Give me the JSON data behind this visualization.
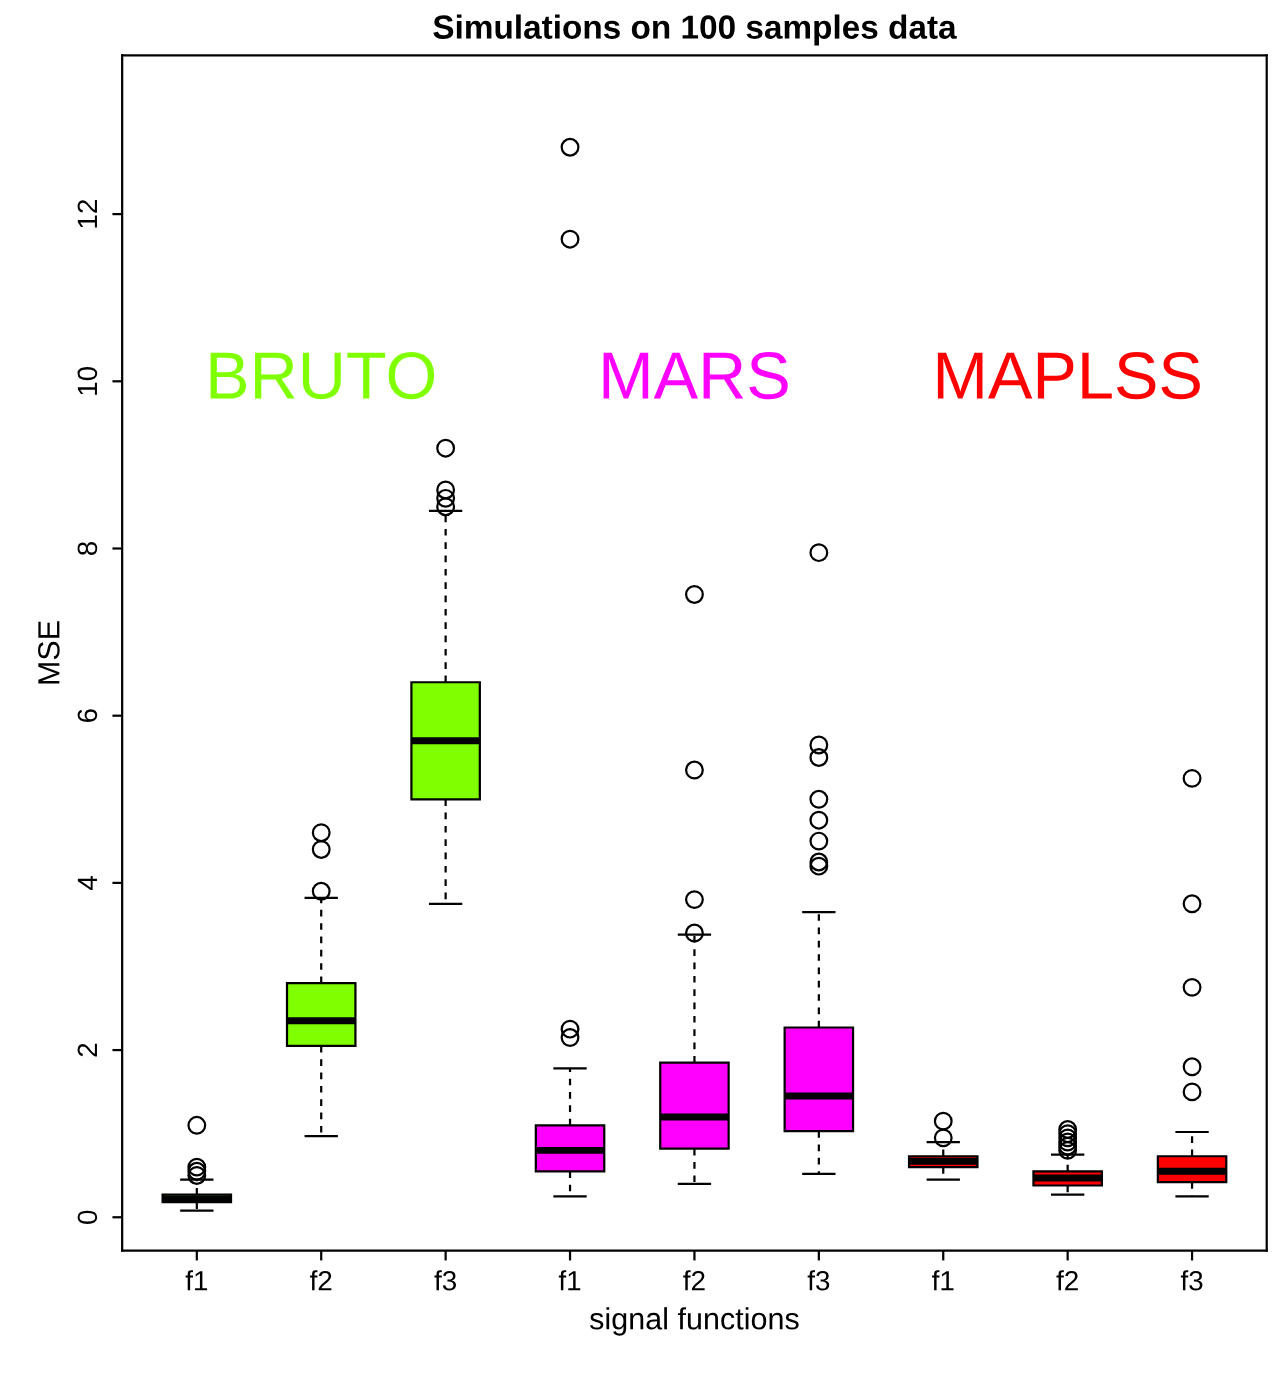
{
  "chart_data": {
    "type": "box",
    "title": "Simulations on 100 samples data",
    "xlabel": "signal functions",
    "ylabel": "MSE",
    "categories": [
      "f1",
      "f2",
      "f3",
      "f1",
      "f2",
      "f3",
      "f1",
      "f2",
      "f3"
    ],
    "series": [
      {
        "name": "BRUTO",
        "color": "#7fff00",
        "boxes": [
          {
            "low": 0.08,
            "q1": 0.18,
            "median": 0.22,
            "q3": 0.27,
            "high": 0.45,
            "outliers": [
              0.5,
              0.55,
              0.6,
              1.1
            ]
          },
          {
            "low": 0.97,
            "q1": 2.05,
            "median": 2.35,
            "q3": 2.8,
            "high": 3.82,
            "outliers": [
              3.9,
              4.4,
              4.6
            ]
          },
          {
            "low": 3.75,
            "q1": 5.0,
            "median": 5.7,
            "q3": 6.4,
            "high": 8.45,
            "outliers": [
              8.5,
              8.6,
              8.7,
              9.2
            ]
          },
          null,
          null,
          null,
          null,
          null,
          null
        ]
      },
      {
        "name": "MARS",
        "color": "#ff00ff",
        "boxes": [
          null,
          null,
          null,
          {
            "low": 0.25,
            "q1": 0.55,
            "median": 0.8,
            "q3": 1.1,
            "high": 1.78,
            "outliers": [
              2.15,
              2.25,
              11.7,
              12.8
            ]
          },
          {
            "low": 0.4,
            "q1": 0.82,
            "median": 1.2,
            "q3": 1.85,
            "high": 3.38,
            "outliers": [
              3.4,
              3.8,
              5.35,
              7.45
            ]
          },
          {
            "low": 0.52,
            "q1": 1.03,
            "median": 1.45,
            "q3": 2.27,
            "high": 3.65,
            "outliers": [
              4.2,
              4.25,
              4.5,
              4.75,
              5.0,
              5.5,
              5.65,
              7.95
            ]
          },
          null,
          null,
          null
        ]
      },
      {
        "name": "MAPLSS",
        "color": "#ff0000",
        "boxes": [
          null,
          null,
          null,
          null,
          null,
          null,
          {
            "low": 0.45,
            "q1": 0.6,
            "median": 0.67,
            "q3": 0.73,
            "high": 0.9,
            "outliers": [
              0.95,
              1.15
            ]
          },
          {
            "low": 0.27,
            "q1": 0.38,
            "median": 0.47,
            "q3": 0.55,
            "high": 0.75,
            "outliers": [
              0.8,
              0.85,
              0.9,
              0.95,
              1.0,
              1.05
            ]
          },
          {
            "low": 0.25,
            "q1": 0.42,
            "median": 0.55,
            "q3": 0.73,
            "high": 1.02,
            "outliers": [
              1.5,
              1.8,
              2.75,
              3.75,
              5.25
            ]
          }
        ]
      }
    ],
    "ylim": [
      -0.4,
      13.9
    ],
    "yticks": [
      0,
      2,
      4,
      6,
      8,
      10,
      12
    ],
    "grid": false,
    "legend": false
  }
}
